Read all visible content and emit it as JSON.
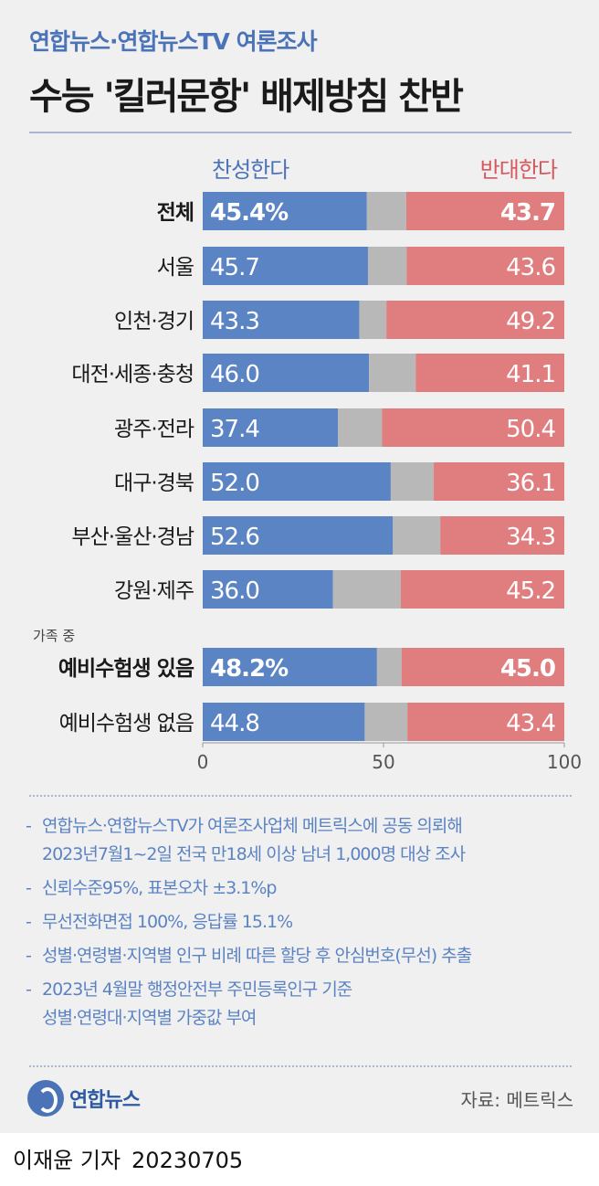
{
  "header": {
    "subtitle": "연합뉴스·연합뉴스TV 여론조사",
    "title": "수능 '킬러문항' 배제방침 찬반"
  },
  "legend": {
    "pro": "찬성한다",
    "con": "반대한다"
  },
  "chart_data": {
    "type": "bar",
    "orientation": "horizontal-stacked",
    "xlim": [
      0,
      100
    ],
    "x_ticks": [
      "0",
      "50",
      "100"
    ],
    "group_note": "가족 중",
    "categories": [
      "전체",
      "서울",
      "인천·경기",
      "대전·세종·충청",
      "광주·전라",
      "대구·경북",
      "부산·울산·경남",
      "강원·제주",
      "예비수험생 있음",
      "예비수험생 없음"
    ],
    "series": [
      {
        "name": "찬성한다",
        "color": "#5b84c4",
        "values": [
          45.4,
          45.7,
          43.3,
          46.0,
          37.4,
          52.0,
          52.6,
          36.0,
          48.2,
          44.8
        ],
        "labels": [
          "45.4%",
          "45.7",
          "43.3",
          "46.0",
          "37.4",
          "52.0",
          "52.6",
          "36.0",
          "48.2%",
          "44.8"
        ]
      },
      {
        "color": "#b8b8b8",
        "values": [
          10.9,
          10.7,
          7.5,
          12.9,
          12.2,
          11.9,
          13.1,
          18.8,
          6.8,
          11.8
        ]
      },
      {
        "name": "반대한다",
        "color": "#e07d7f",
        "values": [
          43.7,
          43.6,
          49.2,
          41.1,
          50.4,
          36.1,
          34.3,
          45.2,
          45.0,
          43.4
        ],
        "labels": [
          "43.7",
          "43.6",
          "49.2",
          "41.1",
          "50.4",
          "36.1",
          "34.3",
          "45.2",
          "45.0",
          "43.4"
        ]
      }
    ],
    "bold_rows": [
      0,
      8
    ]
  },
  "notes": [
    [
      "연합뉴스·연합뉴스TV가 여론조사업체 메트릭스에 공동 의뢰해",
      "2023년7월1~2일 전국 만18세 이상 남녀 1,000명 대상 조사"
    ],
    [
      "신뢰수준95%, 표본오차 ±3.1%p"
    ],
    [
      "무선전화면접 100%, 응답률 15.1%"
    ],
    [
      "성별·연령별·지역별 인구 비례 따른 할당 후 안심번호(무선) 추출"
    ],
    [
      "2023년 4월말 행정안전부 주민등록인구 기준",
      "성별·연령대·지역별 가중값 부여"
    ]
  ],
  "footer": {
    "logo_text": "연합뉴스",
    "source": "자료: 메트릭스",
    "byline": "이재윤 기자",
    "date": "20230705"
  }
}
